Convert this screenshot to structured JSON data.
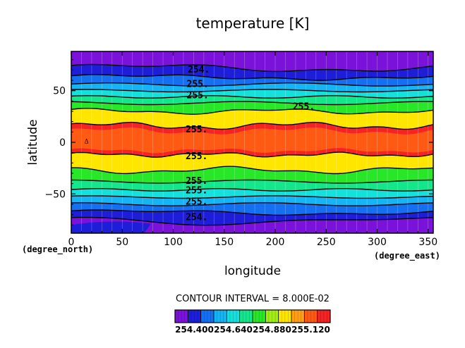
{
  "chart_data": {
    "type": "heatmap",
    "title": "temperature [K]",
    "xlabel": "longitude",
    "ylabel": "latitude",
    "x_unit": "(degree_east)",
    "y_unit": "(degree_north)",
    "xlim": [
      0,
      355
    ],
    "ylim": [
      -88,
      88
    ],
    "x_ticks": [
      0,
      50,
      100,
      150,
      200,
      250,
      300,
      350
    ],
    "y_ticks": [
      50,
      0,
      -50
    ],
    "grid": true,
    "contour_interval_text": "CONTOUR INTERVAL = 8.000E-02",
    "contour_interval": 0.08,
    "levels": [
      254.32,
      254.4,
      254.48,
      254.56,
      254.64,
      254.72,
      254.8,
      254.88,
      254.96,
      255.04,
      255.12,
      255.2
    ],
    "level_colors": [
      "#7b12d9",
      "#1e1ed8",
      "#1470f0",
      "#14b4f5",
      "#14e0dc",
      "#14e68c",
      "#28e628",
      "#a0ee14",
      "#ffe600",
      "#ffa014",
      "#ff5a14",
      "#f52323"
    ],
    "colorbar_labels": [
      "254.400",
      "254.640",
      "254.880",
      "255.120"
    ],
    "contour_labels": [
      {
        "text": "254.",
        "lon": 125,
        "lat": 71
      },
      {
        "text": "255.",
        "lon": 124,
        "lat": 57
      },
      {
        "text": "255.",
        "lon": 124,
        "lat": 46
      },
      {
        "text": "255.",
        "lon": 228,
        "lat": 35
      },
      {
        "text": "255.",
        "lon": 123,
        "lat": 13
      },
      {
        "text": "255.",
        "lon": 123,
        "lat": -13
      },
      {
        "text": "255.",
        "lon": 123,
        "lat": -37
      },
      {
        "text": "255.",
        "lon": 123,
        "lat": -46
      },
      {
        "text": "255.",
        "lon": 123,
        "lat": -57
      },
      {
        "text": "254.",
        "lon": 123,
        "lat": -72
      }
    ],
    "description_of_field": "Zonally banded temperature, warmest (~255.12 K) near the equator, decreasing to ~254.32 K toward both poles."
  }
}
